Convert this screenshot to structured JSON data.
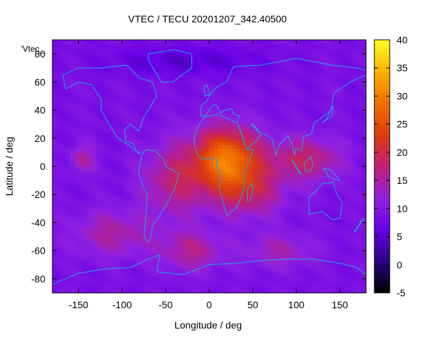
{
  "chart_data": {
    "type": "heatmap",
    "title": "VTEC / TECU 20201207_342.40500",
    "xlabel": "Longitude / deg",
    "ylabel": "Latitude / deg",
    "legend_label": "'Vtec_",
    "xlim": [
      -180,
      180
    ],
    "ylim": [
      -90,
      90
    ],
    "x_ticks": [
      "-150",
      "-100",
      "-50",
      "0",
      "50",
      "100",
      "150"
    ],
    "y_ticks": [
      "-80",
      "-60",
      "-40",
      "-20",
      "0",
      "20",
      "40",
      "60",
      "80"
    ],
    "colorbar": {
      "range": [
        -5,
        40
      ],
      "ticks": [
        "-5",
        "0",
        "5",
        "10",
        "15",
        "20",
        "25",
        "30",
        "35",
        "40"
      ]
    },
    "coastline_color": "#1fa2e0",
    "grid": false,
    "regions": [
      {
        "name": "background",
        "value": 9
      },
      {
        "lon": 20,
        "lat": 5,
        "slon": 38,
        "slat": 22,
        "amp": 20
      },
      {
        "lon": 45,
        "lat": -18,
        "slon": 40,
        "slat": 18,
        "amp": 8
      },
      {
        "lon": 110,
        "lat": 5,
        "slon": 40,
        "slat": 15,
        "amp": 9
      },
      {
        "lon": -40,
        "lat": -10,
        "slon": 35,
        "slat": 25,
        "amp": 8
      },
      {
        "lon": -110,
        "lat": -48,
        "slon": 45,
        "slat": 16,
        "amp": 6
      },
      {
        "lon": -20,
        "lat": -60,
        "slon": 35,
        "slat": 14,
        "amp": 7
      },
      {
        "lon": -145,
        "lat": 5,
        "slon": 14,
        "slat": 10,
        "amp": 6
      },
      {
        "lon": 80,
        "lat": -60,
        "slon": 40,
        "slat": 12,
        "amp": 5
      },
      {
        "lon": -30,
        "lat": 75,
        "slon": 90,
        "slat": 10,
        "amp": -4
      }
    ]
  }
}
